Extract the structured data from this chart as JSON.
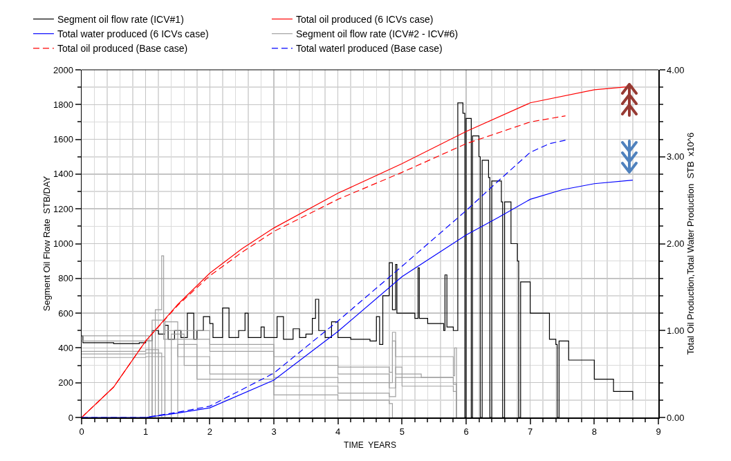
{
  "chart_data": {
    "type": "line",
    "xlabel": "TIME  YEARS",
    "ylabel": "Segment Oil Flow Rate  STB/DAY",
    "y2label": "Total Oil Production,Total Water Production  STB  x10^6",
    "xlim": [
      0,
      9
    ],
    "xticks": [
      0,
      1,
      2,
      3,
      4,
      5,
      6,
      7,
      8,
      9
    ],
    "ylim": [
      0,
      2000
    ],
    "yticks": [
      0,
      200,
      400,
      600,
      800,
      1000,
      1200,
      1400,
      1600,
      1800,
      2000
    ],
    "y2lim": [
      0,
      4
    ],
    "y2ticks": [
      {
        "value": 0,
        "label": "0.00"
      },
      {
        "value": 1,
        "label": "1.00"
      },
      {
        "value": 2,
        "label": "2.00"
      },
      {
        "value": 3,
        "label": "3.00"
      },
      {
        "value": 4,
        "label": "4.00"
      }
    ],
    "grid": true,
    "legend": "top",
    "marker": "none",
    "series": [
      {
        "name": "Segment oil flow rate (ICV#1)",
        "type": "step",
        "color": "#000000",
        "line_style": "solid",
        "x": [
          0,
          0.02,
          0.5,
          0.9,
          1.0,
          1.1,
          1.2,
          1.3,
          1.35,
          1.45,
          1.55,
          1.65,
          1.75,
          1.8,
          1.9,
          2.0,
          2.05,
          2.2,
          2.3,
          2.45,
          2.55,
          2.6,
          2.8,
          2.85,
          3.05,
          3.15,
          3.3,
          3.4,
          3.5,
          3.6,
          3.65,
          3.7,
          3.8,
          3.9,
          4.0,
          4.2,
          4.5,
          4.6,
          4.65,
          4.7,
          4.8,
          4.85,
          4.9,
          4.92,
          5.2,
          5.25,
          5.27,
          5.4,
          5.65,
          5.67,
          5.7,
          5.8,
          5.87,
          5.95,
          5.98,
          6.0,
          6.08,
          6.1,
          6.2,
          6.22,
          6.25,
          6.35,
          6.37,
          6.4,
          6.55,
          6.57,
          6.6,
          6.7,
          6.8,
          6.82,
          6.85,
          7.0,
          7.3,
          7.4,
          7.42,
          7.45,
          7.6,
          8.0,
          8.3,
          8.6
        ],
        "values": [
          470,
          430,
          425,
          430,
          440,
          500,
          480,
          530,
          450,
          500,
          460,
          600,
          450,
          500,
          580,
          540,
          460,
          630,
          460,
          500,
          600,
          460,
          520,
          460,
          580,
          450,
          510,
          460,
          480,
          570,
          680,
          500,
          460,
          550,
          460,
          450,
          440,
          580,
          420,
          700,
          890,
          620,
          880,
          600,
          570,
          860,
          570,
          540,
          500,
          820,
          520,
          500,
          1810,
          1750,
          0,
          1720,
          0,
          1620,
          1500,
          0,
          1480,
          1380,
          0,
          1360,
          1240,
          0,
          1240,
          1000,
          900,
          0,
          780,
          600,
          450,
          420,
          0,
          440,
          330,
          220,
          150,
          100
        ]
      },
      {
        "name": "Total oil produced (6 ICVs case)",
        "type": "line",
        "axis": "y2",
        "color": "#ff0000",
        "line_style": "solid",
        "x": [
          0,
          0.5,
          1,
          1.5,
          2,
          2.5,
          3,
          4,
          5,
          6,
          7,
          8,
          8.6
        ],
        "values": [
          0,
          0.35,
          0.88,
          1.3,
          1.66,
          1.94,
          2.18,
          2.58,
          2.92,
          3.29,
          3.62,
          3.77,
          3.81
        ]
      },
      {
        "name": "Total water produced (6 ICVs case)",
        "type": "line",
        "axis": "y2",
        "color": "#0000ff",
        "line_style": "solid",
        "x": [
          0,
          1,
          1.5,
          2,
          3,
          4,
          5,
          6,
          6.5,
          7,
          7.5,
          8,
          8.6
        ],
        "values": [
          0,
          0,
          0.05,
          0.11,
          0.43,
          0.99,
          1.62,
          2.1,
          2.3,
          2.51,
          2.62,
          2.69,
          2.73
        ]
      },
      {
        "name": "Segment oil flow rate (ICV#2 - ICV#6)",
        "type": "step",
        "color": "#a0a0a0",
        "line_style": "solid",
        "x": [
          0,
          1.0,
          1.05,
          1.1,
          1.3,
          2,
          3,
          4,
          4.8,
          4.85,
          4.9,
          5.8,
          5.82,
          5.85
        ],
        "values": [
          470,
          470,
          0,
          560,
          500,
          420,
          350,
          290,
          260,
          490,
          350,
          240,
          400,
          0
        ]
      },
      {
        "name": "Total oil produced (Base case)",
        "type": "line",
        "axis": "y2",
        "color": "#ff0000",
        "line_style": "dashed",
        "x": [
          0,
          0.5,
          1,
          1.5,
          2,
          2.5,
          3,
          4,
          5,
          6,
          7,
          7.55
        ],
        "values": [
          0,
          0.35,
          0.88,
          1.29,
          1.63,
          1.9,
          2.14,
          2.51,
          2.82,
          3.15,
          3.4,
          3.47
        ]
      },
      {
        "name": "Total waterl produced (Base case)",
        "type": "line",
        "axis": "y2",
        "color": "#0000ff",
        "line_style": "dashed",
        "x": [
          0,
          1,
          1.5,
          2,
          3,
          4,
          5,
          6,
          6.5,
          7,
          7.3,
          7.55
        ],
        "values": [
          0,
          0,
          0.06,
          0.13,
          0.51,
          1.11,
          1.74,
          2.38,
          2.72,
          3.05,
          3.15,
          3.19
        ]
      },
      {
        "type": "step",
        "color": "#a0a0a0",
        "line_style": "solid",
        "x": [
          0,
          1.0,
          1.1,
          1.15,
          1.25,
          1.28,
          2,
          3,
          4,
          4.8,
          4.85,
          4.9,
          5.3,
          5.8,
          5.85
        ],
        "values": [
          440,
          440,
          0,
          620,
          930,
          450,
          380,
          300,
          250,
          200,
          440,
          250,
          230,
          200,
          0
        ]
      },
      {
        "type": "step",
        "color": "#a0a0a0",
        "line_style": "solid",
        "x": [
          0,
          1.0,
          1.2,
          1.3,
          1.5,
          2,
          3,
          4,
          4.8,
          4.9,
          5,
          5.8,
          5.85
        ],
        "values": [
          380,
          390,
          0,
          550,
          350,
          300,
          230,
          200,
          170,
          290,
          230,
          190,
          0
        ]
      },
      {
        "type": "step",
        "color": "#a0a0a0",
        "line_style": "solid",
        "x": [
          0,
          1.0,
          1.25,
          1.4,
          1.6,
          2,
          3,
          4,
          4.8,
          4.9,
          5,
          5.8,
          5.85
        ],
        "values": [
          365,
          370,
          0,
          480,
          300,
          250,
          180,
          140,
          120,
          230,
          180,
          150,
          0
        ]
      },
      {
        "type": "step",
        "color": "#a0a0a0",
        "line_style": "solid",
        "x": [
          0,
          1,
          1.3,
          1.5,
          1.8,
          3,
          4,
          4.8,
          4.85
        ],
        "values": [
          345,
          350,
          0,
          420,
          220,
          130,
          100,
          80,
          0
        ]
      }
    ]
  }
}
